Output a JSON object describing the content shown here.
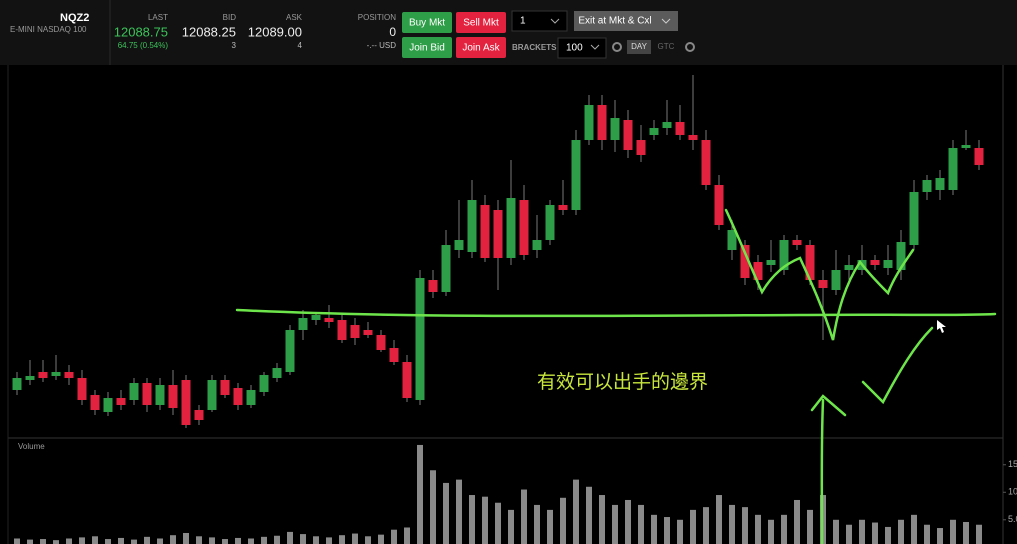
{
  "toolbar": {
    "symbol": "NQZ2",
    "description": "E-MINI NASDAQ 100",
    "last_label": "LAST",
    "last": "12088.75",
    "change": "64.75 (0.54%)",
    "bid_label": "BID",
    "bid": "12088.25",
    "bid_size": "3",
    "ask_label": "ASK",
    "ask": "12089.00",
    "ask_size": "4",
    "position_label": "POSITION",
    "position": "0",
    "position_value": "-.-- USD",
    "buy_mkt": "Buy Mkt",
    "sell_mkt": "Sell Mkt",
    "join_bid": "Join Bid",
    "join_ask": "Join Ask",
    "quantity": "1",
    "exit": "Exit at Mkt & Cxl",
    "brackets_label": "BRACKETS",
    "brackets": "100",
    "day": "DAY",
    "gtc": "GTC"
  },
  "chart_data": {
    "type": "candlestick",
    "up_color": "#2e9e48",
    "down_color": "#e3223f",
    "open": [
      11854,
      11864,
      11872,
      11868,
      11872,
      11866,
      11849,
      11832,
      11846,
      11844,
      11861,
      11839,
      11859,
      11864,
      11834,
      11834,
      11864,
      11856,
      11839,
      11852,
      11866,
      11872,
      11914,
      11924,
      11926,
      11924,
      11919,
      11914,
      11909,
      11896,
      11882,
      11844,
      11964,
      11952,
      11994,
      11992,
      12039,
      12034,
      11986,
      12044,
      11994,
      12004,
      12039,
      12034,
      12104,
      12139,
      12104,
      12124,
      12104,
      12109,
      12116,
      12122,
      12109,
      12104,
      12059,
      11994,
      11999,
      11982,
      11979,
      11974,
      12004,
      11999,
      11964,
      11954,
      11974,
      11974,
      11984,
      11976,
      11974,
      11999,
      12052,
      12054,
      12054,
      12096,
      12096
    ],
    "high": [
      11872,
      11884,
      11884,
      11889,
      11879,
      11874,
      11854,
      11852,
      11854,
      11866,
      11866,
      11866,
      11874,
      11869,
      11839,
      11869,
      11869,
      11861,
      11859,
      11872,
      11881,
      11919,
      11934,
      11932,
      11939,
      11929,
      11926,
      11922,
      11914,
      11904,
      11889,
      11974,
      11974,
      12014,
      12044,
      12064,
      12049,
      12044,
      12084,
      12059,
      12029,
      12044,
      12064,
      12114,
      12149,
      12149,
      12144,
      12134,
      12119,
      12124,
      12144,
      12139,
      12169,
      12114,
      12069,
      12024,
      12004,
      11989,
      12004,
      12009,
      12009,
      12004,
      11974,
      11994,
      11989,
      11999,
      11989,
      11999,
      12014,
      12064,
      12069,
      12074,
      12104,
      12114,
      12104
    ],
    "low": [
      11849,
      11859,
      11862,
      11864,
      11859,
      11839,
      11829,
      11828,
      11834,
      11839,
      11832,
      11834,
      11829,
      11816,
      11819,
      11832,
      11846,
      11834,
      11836,
      11848,
      11862,
      11869,
      11904,
      11919,
      11916,
      11901,
      11899,
      11906,
      11892,
      11879,
      11842,
      11839,
      11946,
      11948,
      11986,
      11986,
      11982,
      11954,
      11979,
      11984,
      11986,
      11999,
      12029,
      12029,
      12099,
      12094,
      12092,
      12086,
      12082,
      12104,
      12109,
      12104,
      12094,
      12054,
      12014,
      11984,
      11959,
      11954,
      11972,
      11969,
      11994,
      11959,
      11904,
      11949,
      11964,
      11969,
      11974,
      11969,
      11964,
      11994,
      12044,
      12044,
      12049,
      12094,
      12074
    ],
    "close": [
      11866,
      11868,
      11866,
      11872,
      11866,
      11844,
      11834,
      11846,
      11839,
      11861,
      11839,
      11859,
      11836,
      11819,
      11824,
      11864,
      11849,
      11839,
      11854,
      11869,
      11876,
      11914,
      11926,
      11929,
      11922,
      11904,
      11906,
      11909,
      11894,
      11882,
      11846,
      11966,
      11952,
      11999,
      12004,
      12044,
      11986,
      11986,
      12046,
      11989,
      12004,
      12039,
      12034,
      12104,
      12139,
      12104,
      12126,
      12094,
      12089,
      12116,
      12122,
      12109,
      12104,
      12059,
      12019,
      12014,
      11966,
      11964,
      11984,
      12004,
      11999,
      11964,
      11956,
      11974,
      11979,
      11984,
      11979,
      11984,
      12002,
      12052,
      12064,
      12066,
      12096,
      12099,
      12079
    ],
    "ylim": [
      11807,
      12179
    ],
    "volume": {
      "label": "Volume",
      "color": "#8a8a8a",
      "values": [
        1.6,
        1.4,
        1.5,
        1.3,
        1.6,
        1.8,
        2.0,
        1.5,
        1.7,
        1.4,
        1.9,
        1.6,
        2.2,
        2.6,
        2.0,
        1.8,
        1.5,
        1.7,
        1.6,
        1.9,
        2.1,
        2.8,
        2.4,
        2.0,
        1.8,
        2.2,
        2.5,
        2.0,
        2.3,
        3.2,
        3.6,
        18.6,
        14,
        11.7,
        12.3,
        9.5,
        9.2,
        8.1,
        6.8,
        10.5,
        7.7,
        6.8,
        9,
        12.3,
        11,
        9.5,
        7.7,
        8.6,
        7.7,
        5.9,
        5.5,
        5,
        6.8,
        7.3,
        9.5,
        7.7,
        7.3,
        5.9,
        5,
        5.9,
        8.6,
        6.8,
        9.5,
        5,
        4.1,
        5,
        4.5,
        3.7,
        5,
        5.9,
        4.1,
        3.5,
        5,
        4.6,
        4.1
      ],
      "ylim": [
        0.6,
        19.5
      ],
      "yticks": [
        15,
        10,
        {
          "value": 5,
          "label": "5.0"
        }
      ]
    }
  },
  "annotation": "有效可以出手的邊界"
}
